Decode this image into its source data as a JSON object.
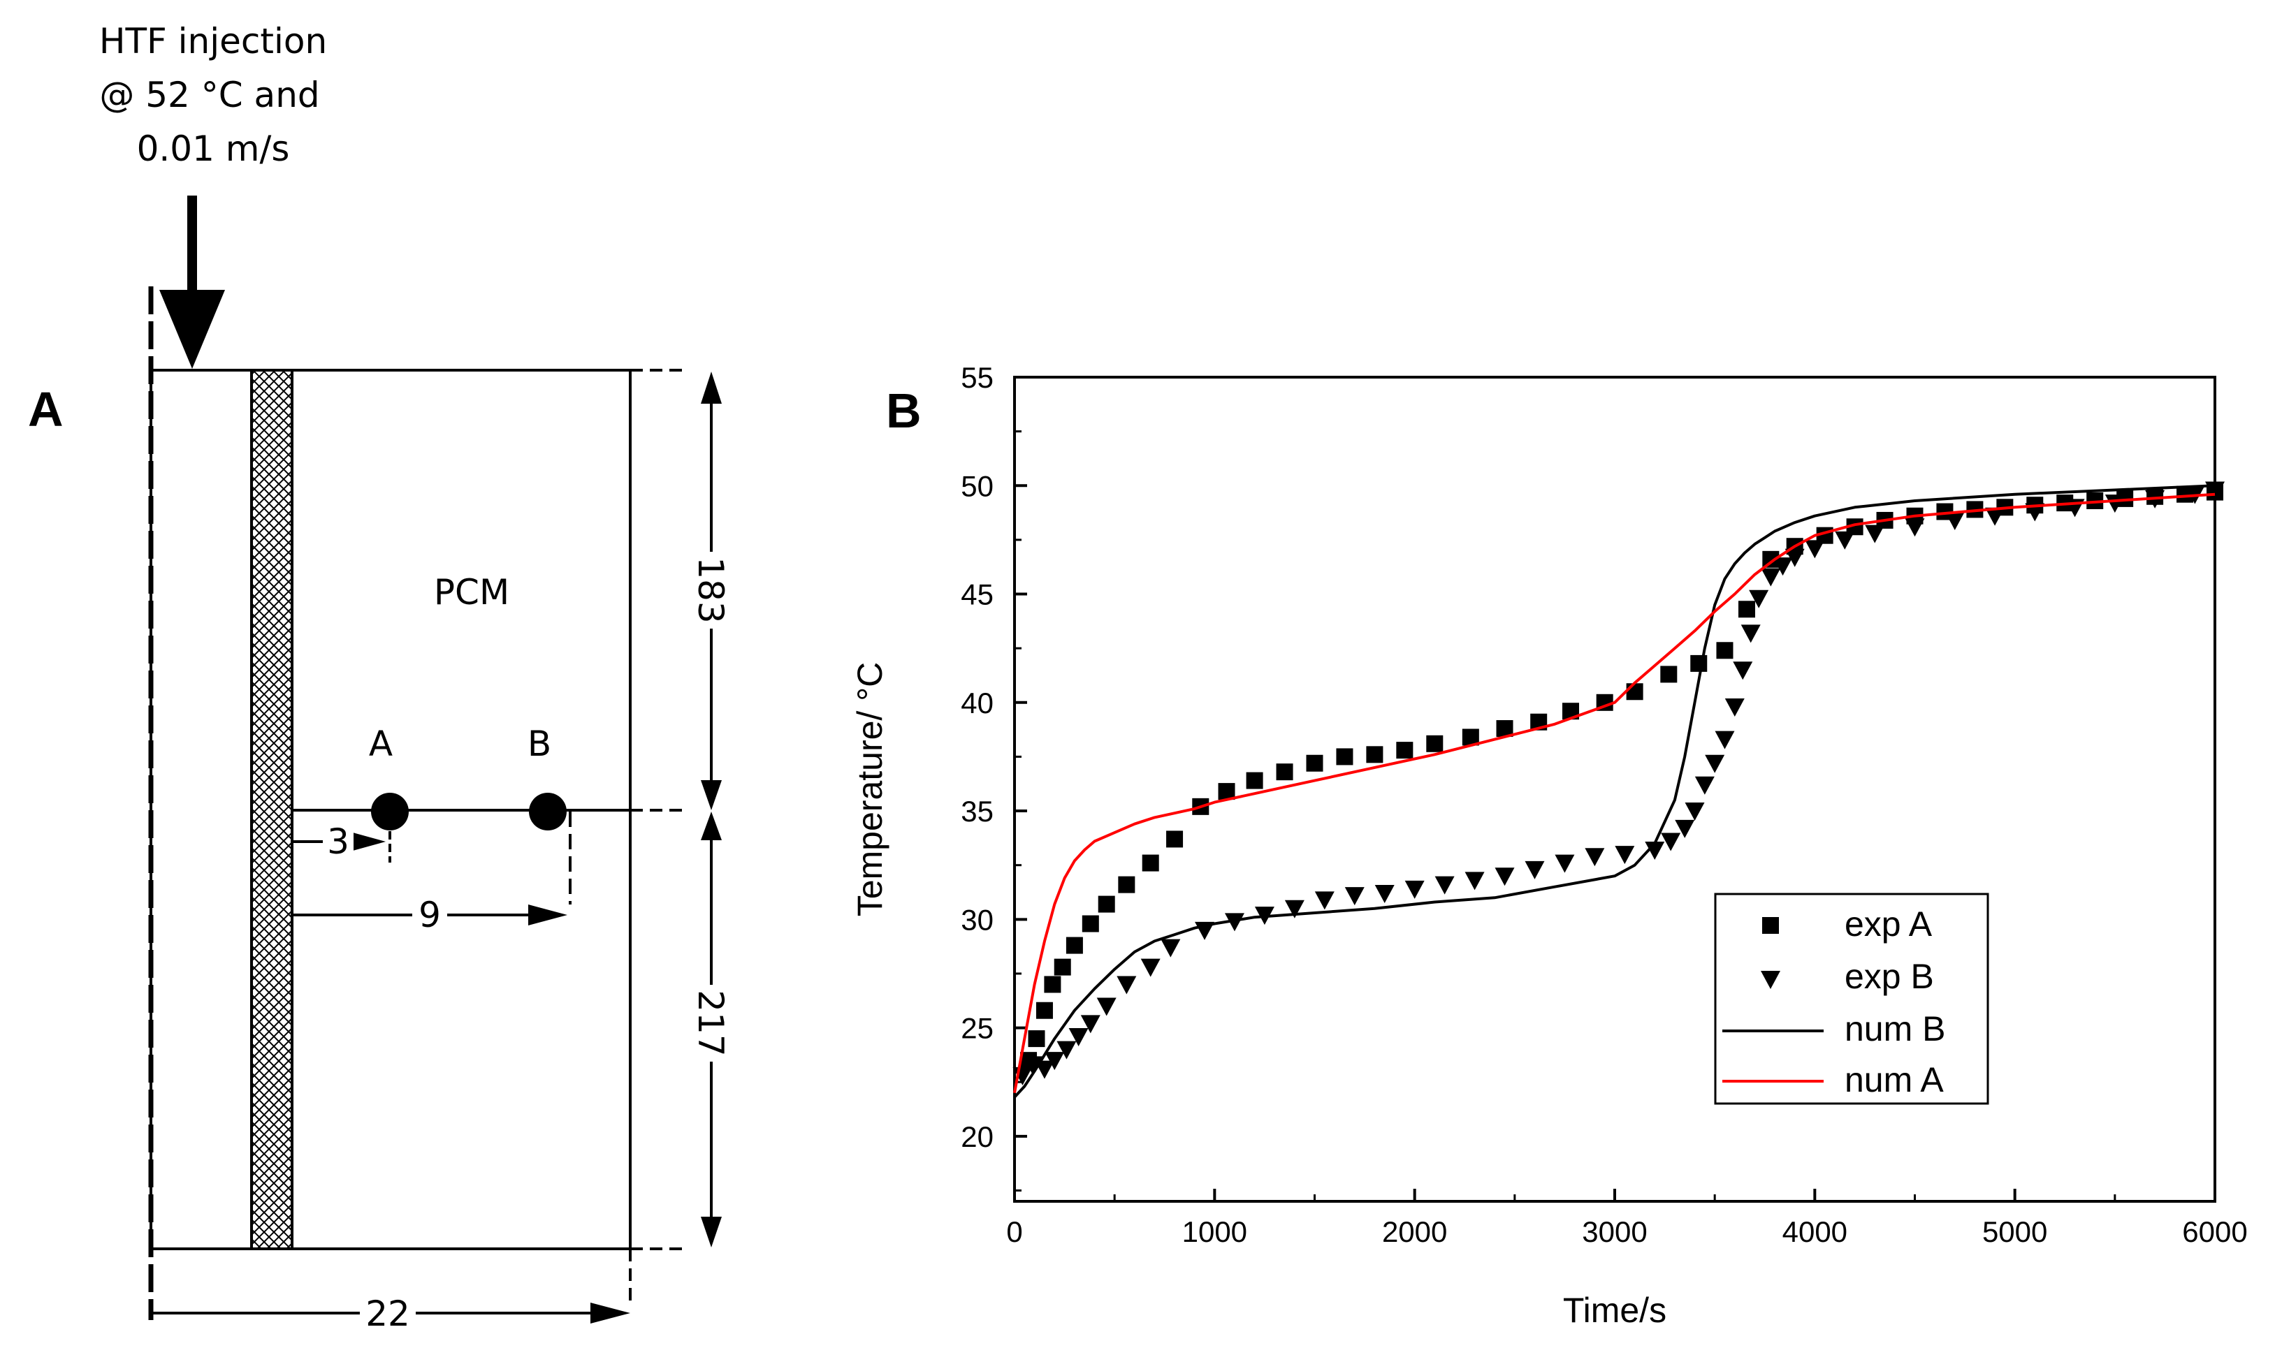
{
  "panel_a": {
    "label": "A",
    "injection_line1": "HTF injection",
    "injection_line2": "@ 52 °C and",
    "injection_line3": "0.01 m/s",
    "pcm_label": "PCM",
    "point_a": "A",
    "point_b": "B",
    "dim_height_top": "183",
    "dim_height_bottom": "217",
    "dim_width": "22",
    "dim_dist_a": "3",
    "dim_dist_b": "9"
  },
  "chart_data": {
    "type": "line",
    "panel_label": "B",
    "title": "",
    "xlabel": "Time/s",
    "ylabel": "Temperature/ °C",
    "xlim": [
      0,
      6000
    ],
    "ylim": [
      17,
      55
    ],
    "xticks": [
      0,
      1000,
      2000,
      3000,
      4000,
      5000,
      6000
    ],
    "yticks": [
      20,
      25,
      30,
      35,
      40,
      45,
      50,
      55
    ],
    "legend_position": "lower-right",
    "series": [
      {
        "name": "exp A",
        "kind": "scatter",
        "marker": "square",
        "color": "#000000",
        "x": [
          70,
          110,
          150,
          190,
          240,
          300,
          380,
          460,
          560,
          680,
          800,
          930,
          1060,
          1200,
          1350,
          1500,
          1650,
          1800,
          1950,
          2100,
          2280,
          2450,
          2620,
          2780,
          2950,
          3100,
          3270,
          3420,
          3550,
          3660,
          3780,
          3900,
          4050,
          4200,
          4350,
          4500,
          4650,
          4800,
          4950,
          5100,
          5250,
          5400,
          5550,
          5700,
          5850,
          6000
        ],
        "values": [
          23.5,
          24.5,
          25.8,
          27.0,
          27.8,
          28.8,
          29.8,
          30.7,
          31.6,
          32.6,
          33.7,
          35.2,
          35.9,
          36.4,
          36.8,
          37.2,
          37.5,
          37.6,
          37.8,
          38.1,
          38.4,
          38.8,
          39.1,
          39.6,
          40.0,
          40.5,
          41.3,
          41.8,
          42.4,
          44.3,
          46.6,
          47.2,
          47.7,
          48.1,
          48.4,
          48.6,
          48.8,
          48.9,
          49.0,
          49.1,
          49.2,
          49.3,
          49.4,
          49.5,
          49.6,
          49.7
        ]
      },
      {
        "name": "exp B",
        "kind": "scatter",
        "marker": "triangle-down",
        "color": "#000000",
        "x": [
          40,
          90,
          150,
          200,
          260,
          320,
          380,
          460,
          560,
          680,
          780,
          950,
          1100,
          1250,
          1400,
          1550,
          1700,
          1850,
          2000,
          2150,
          2300,
          2450,
          2600,
          2750,
          2900,
          3050,
          3200,
          3280,
          3350,
          3400,
          3450,
          3500,
          3550,
          3600,
          3640,
          3680,
          3720,
          3780,
          3840,
          3900,
          4000,
          4150,
          4300,
          4500,
          4700,
          4900,
          5100,
          5300,
          5500,
          5700,
          5900,
          6000
        ],
        "values": [
          22.8,
          23.3,
          23.1,
          23.5,
          24.0,
          24.6,
          25.2,
          26.0,
          27.0,
          27.8,
          28.7,
          29.5,
          29.9,
          30.2,
          30.5,
          30.9,
          31.1,
          31.2,
          31.4,
          31.6,
          31.8,
          32.0,
          32.3,
          32.6,
          32.9,
          33.0,
          33.2,
          33.6,
          34.2,
          35.0,
          36.2,
          37.2,
          38.3,
          39.8,
          41.5,
          43.2,
          44.8,
          45.8,
          46.3,
          46.7,
          47.1,
          47.5,
          47.8,
          48.1,
          48.4,
          48.6,
          48.8,
          49.0,
          49.2,
          49.4,
          49.6,
          49.8
        ]
      },
      {
        "name": "num B",
        "kind": "line",
        "color": "#000000",
        "x": [
          0,
          50,
          100,
          200,
          300,
          400,
          500,
          600,
          700,
          800,
          900,
          1000,
          1200,
          1500,
          1800,
          2100,
          2400,
          2700,
          3000,
          3100,
          3200,
          3300,
          3350,
          3400,
          3450,
          3500,
          3550,
          3600,
          3650,
          3700,
          3750,
          3800,
          3900,
          4000,
          4200,
          4500,
          5000,
          5500,
          6000
        ],
        "values": [
          21.8,
          22.3,
          23.0,
          24.5,
          25.8,
          26.8,
          27.7,
          28.5,
          29.0,
          29.3,
          29.6,
          29.8,
          30.1,
          30.3,
          30.5,
          30.8,
          31.0,
          31.5,
          32.0,
          32.5,
          33.5,
          35.5,
          37.5,
          40.0,
          42.5,
          44.5,
          45.7,
          46.4,
          46.9,
          47.3,
          47.6,
          47.9,
          48.3,
          48.6,
          49.0,
          49.3,
          49.6,
          49.8,
          50.0
        ]
      },
      {
        "name": "num A",
        "kind": "line",
        "color": "#ff0000",
        "x": [
          0,
          50,
          100,
          150,
          200,
          250,
          300,
          350,
          400,
          500,
          600,
          700,
          800,
          900,
          1000,
          1200,
          1500,
          1800,
          2100,
          2400,
          2700,
          3000,
          3100,
          3200,
          3300,
          3400,
          3500,
          3600,
          3700,
          3800,
          3900,
          4000,
          4200,
          4500,
          5000,
          5500,
          6000
        ],
        "values": [
          22.0,
          24.5,
          27.0,
          29.0,
          30.7,
          31.9,
          32.7,
          33.2,
          33.6,
          34.0,
          34.4,
          34.7,
          34.9,
          35.1,
          35.4,
          35.8,
          36.4,
          37.0,
          37.6,
          38.3,
          39.0,
          40.0,
          40.9,
          41.7,
          42.5,
          43.3,
          44.2,
          45.0,
          45.9,
          46.6,
          47.2,
          47.7,
          48.2,
          48.6,
          49.0,
          49.3,
          49.6
        ]
      }
    ]
  }
}
